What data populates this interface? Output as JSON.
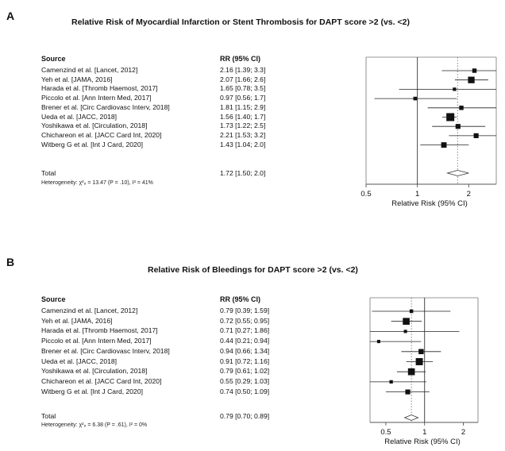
{
  "chart_data": [
    {
      "type": "forest",
      "panel": "A",
      "title": "Relative Risk of Myocardial Infarction or Stent Thrombosis for DAPT score >2 (vs. <2)",
      "source_header": "Source",
      "rr_header": "RR (95% CI)",
      "xlabel": "Relative Risk (95% CI)",
      "scale": "log",
      "xlim": [
        0.5,
        2.9
      ],
      "ticks": [
        {
          "value": 0.5,
          "label": "0.5"
        },
        {
          "value": 1,
          "label": "1"
        },
        {
          "value": 2,
          "label": "2"
        }
      ],
      "studies": [
        {
          "source": "Camenzind et al. [Lancet, 2012]",
          "rr_text": "2.16 [1.39; 3.3]",
          "rr": 2.16,
          "lo": 1.39,
          "hi": 3.3,
          "weight": 0.35
        },
        {
          "source": "Yeh et al. [JAMA, 2016]",
          "rr_text": "2.07 [1.66; 2.6]",
          "rr": 2.07,
          "lo": 1.66,
          "hi": 2.6,
          "weight": 0.75
        },
        {
          "source": "Harada et al. [Thromb Haemost, 2017]",
          "rr_text": "1.65 [0.78; 3.5]",
          "rr": 1.65,
          "lo": 0.78,
          "hi": 3.5,
          "weight": 0.18
        },
        {
          "source": "Piccolo et al. [Ann Intern Med, 2017]",
          "rr_text": "0.97 [0.56; 1.7]",
          "rr": 0.97,
          "lo": 0.56,
          "hi": 1.7,
          "weight": 0.22
        },
        {
          "source": "Brener et al. [Circ Cardiovasc Interv, 2018]",
          "rr_text": "1.81 [1.15; 2.9]",
          "rr": 1.81,
          "lo": 1.15,
          "hi": 2.9,
          "weight": 0.35
        },
        {
          "source": "Ueda et al. [JACC, 2018]",
          "rr_text": "1.56 [1.40; 1.7]",
          "rr": 1.56,
          "lo": 1.4,
          "hi": 1.7,
          "weight": 1.0
        },
        {
          "source": "Yoshikawa et al. [Circulation, 2018]",
          "rr_text": "1.73 [1.22; 2.5]",
          "rr": 1.73,
          "lo": 1.22,
          "hi": 2.5,
          "weight": 0.45
        },
        {
          "source": "Chichareon et al. [JACC Card Int, 2020]",
          "rr_text": "2.21 [1.53; 3.2]",
          "rr": 2.21,
          "lo": 1.53,
          "hi": 3.2,
          "weight": 0.45
        },
        {
          "source": "Witberg G et al. [Int J Card, 2020]",
          "rr_text": "1.43 [1.04; 2.0]",
          "rr": 1.43,
          "lo": 1.04,
          "hi": 2.0,
          "weight": 0.55
        }
      ],
      "total": {
        "source": "Total",
        "rr_text": "1.72 [1.50; 2.0]",
        "rr": 1.72,
        "lo": 1.5,
        "hi": 2.0
      },
      "heterogeneity": "Heterogeneity: χ²₈ = 13.47 (P = .10), I² = 41%"
    },
    {
      "type": "forest",
      "panel": "B",
      "title": "Relative Risk of Bleedings for DAPT score >2 (vs. <2)",
      "source_header": "Source",
      "rr_header": "RR (95% CI)",
      "xlabel": "Relative Risk (95% CI)",
      "scale": "log",
      "xlim": [
        0.18,
        2.6
      ],
      "ticks": [
        {
          "value": 0.5,
          "label": "0.5"
        },
        {
          "value": 1,
          "label": "1"
        },
        {
          "value": 2,
          "label": "2"
        }
      ],
      "studies": [
        {
          "source": "Camenzind et al. [Lancet, 2012]",
          "rr_text": "0.79 [0.39; 1.59]",
          "rr": 0.79,
          "lo": 0.39,
          "hi": 1.59,
          "weight": 0.22
        },
        {
          "source": "Yeh et al. [JAMA, 2016]",
          "rr_text": "0.72 [0.55; 0.95]",
          "rr": 0.72,
          "lo": 0.55,
          "hi": 0.95,
          "weight": 0.8
        },
        {
          "source": "Harada et al. [Thromb Haemost, 2017]",
          "rr_text": "0.71 [0.27; 1.86]",
          "rr": 0.71,
          "lo": 0.27,
          "hi": 1.86,
          "weight": 0.15
        },
        {
          "source": "Piccolo et al. [Ann Intern Med, 2017]",
          "rr_text": "0.44 [0.21; 0.94]",
          "rr": 0.44,
          "lo": 0.21,
          "hi": 0.94,
          "weight": 0.15
        },
        {
          "source": "Brener et al. [Circ Cardiovasc Interv, 2018]",
          "rr_text": "0.94 [0.66; 1.34]",
          "rr": 0.94,
          "lo": 0.66,
          "hi": 1.34,
          "weight": 0.5
        },
        {
          "source": "Ueda et al. [JACC, 2018]",
          "rr_text": "0.91 [0.72; 1.16]",
          "rr": 0.91,
          "lo": 0.72,
          "hi": 1.16,
          "weight": 0.85
        },
        {
          "source": "Yoshikawa et al. [Circulation, 2018]",
          "rr_text": "0.79 [0.61; 1.02]",
          "rr": 0.79,
          "lo": 0.61,
          "hi": 1.02,
          "weight": 0.8
        },
        {
          "source": "Chichareon et al. [JACC Card Int, 2020]",
          "rr_text": "0.55 [0.29; 1.03]",
          "rr": 0.55,
          "lo": 0.29,
          "hi": 1.03,
          "weight": 0.18
        },
        {
          "source": "Witberg G et al. [Int J Card, 2020]",
          "rr_text": "0.74 [0.50; 1.09]",
          "rr": 0.74,
          "lo": 0.5,
          "hi": 1.09,
          "weight": 0.45
        }
      ],
      "total": {
        "source": "Total",
        "rr_text": "0.79 [0.70; 0.89]",
        "rr": 0.79,
        "lo": 0.7,
        "hi": 0.89
      },
      "heterogeneity": "Heterogeneity: χ²₈ = 6.38 (P = .61), I² = 0%"
    }
  ]
}
